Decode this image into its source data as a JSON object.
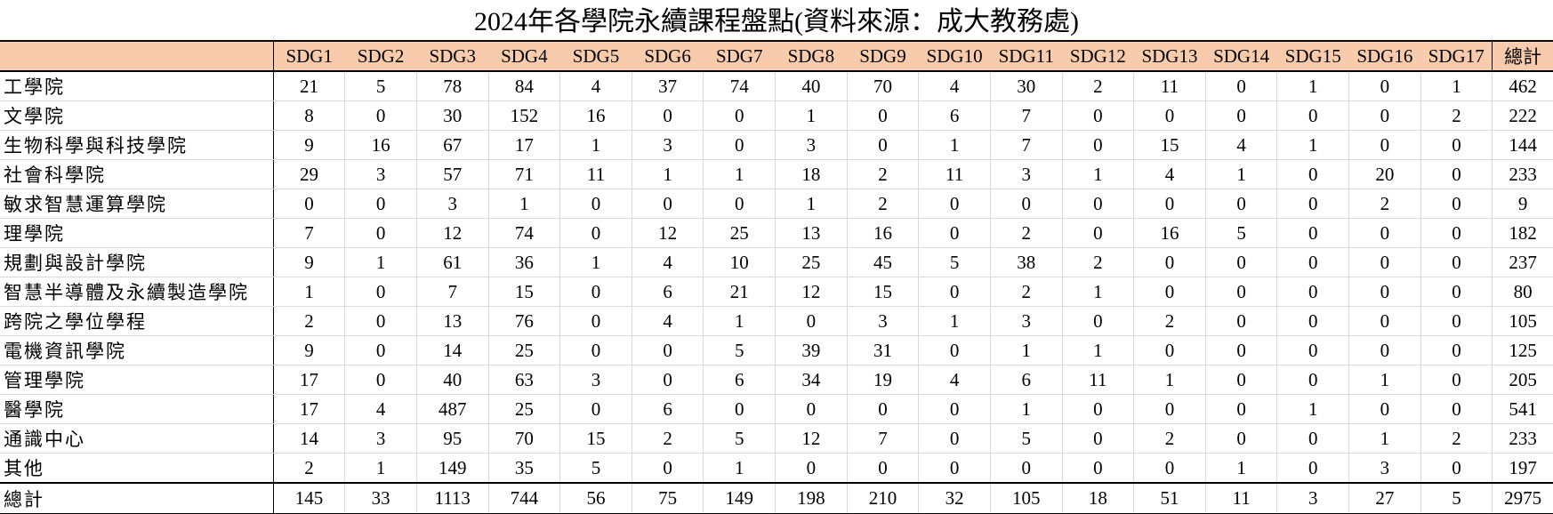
{
  "title": "2024年各學院永續課程盤點(資料來源：成大教務處)",
  "columns": [
    "SDG1",
    "SDG2",
    "SDG3",
    "SDG4",
    "SDG5",
    "SDG6",
    "SDG7",
    "SDG8",
    "SDG9",
    "SDG10",
    "SDG11",
    "SDG12",
    "SDG13",
    "SDG14",
    "SDG15",
    "SDG16",
    "SDG17",
    "總計"
  ],
  "header_color": "#f8cbad",
  "rows": [
    {
      "name": "工學院",
      "values": [
        21,
        5,
        78,
        84,
        4,
        37,
        74,
        40,
        70,
        4,
        30,
        2,
        11,
        0,
        1,
        0,
        1,
        462
      ]
    },
    {
      "name": "文學院",
      "values": [
        8,
        0,
        30,
        152,
        16,
        0,
        0,
        1,
        0,
        6,
        7,
        0,
        0,
        0,
        0,
        0,
        2,
        222
      ]
    },
    {
      "name": "生物科學與科技學院",
      "values": [
        9,
        16,
        67,
        17,
        1,
        3,
        0,
        3,
        0,
        1,
        7,
        0,
        15,
        4,
        1,
        0,
        0,
        144
      ]
    },
    {
      "name": "社會科學院",
      "values": [
        29,
        3,
        57,
        71,
        11,
        1,
        1,
        18,
        2,
        11,
        3,
        1,
        4,
        1,
        0,
        20,
        0,
        233
      ]
    },
    {
      "name": "敏求智慧運算學院",
      "values": [
        0,
        0,
        3,
        1,
        0,
        0,
        0,
        1,
        2,
        0,
        0,
        0,
        0,
        0,
        0,
        2,
        0,
        9
      ]
    },
    {
      "name": "理學院",
      "values": [
        7,
        0,
        12,
        74,
        0,
        12,
        25,
        13,
        16,
        0,
        2,
        0,
        16,
        5,
        0,
        0,
        0,
        182
      ]
    },
    {
      "name": "規劃與設計學院",
      "values": [
        9,
        1,
        61,
        36,
        1,
        4,
        10,
        25,
        45,
        5,
        38,
        2,
        0,
        0,
        0,
        0,
        0,
        237
      ]
    },
    {
      "name": "智慧半導體及永續製造學院",
      "values": [
        1,
        0,
        7,
        15,
        0,
        6,
        21,
        12,
        15,
        0,
        2,
        1,
        0,
        0,
        0,
        0,
        0,
        80
      ]
    },
    {
      "name": "跨院之學位學程",
      "values": [
        2,
        0,
        13,
        76,
        0,
        4,
        1,
        0,
        3,
        1,
        3,
        0,
        2,
        0,
        0,
        0,
        0,
        105
      ]
    },
    {
      "name": "電機資訊學院",
      "values": [
        9,
        0,
        14,
        25,
        0,
        0,
        5,
        39,
        31,
        0,
        1,
        1,
        0,
        0,
        0,
        0,
        0,
        125
      ]
    },
    {
      "name": "管理學院",
      "values": [
        17,
        0,
        40,
        63,
        3,
        0,
        6,
        34,
        19,
        4,
        6,
        11,
        1,
        0,
        0,
        1,
        0,
        205
      ]
    },
    {
      "name": "醫學院",
      "values": [
        17,
        4,
        487,
        25,
        0,
        6,
        0,
        0,
        0,
        0,
        1,
        0,
        0,
        0,
        1,
        0,
        0,
        541
      ]
    },
    {
      "name": "通識中心",
      "values": [
        14,
        3,
        95,
        70,
        15,
        2,
        5,
        12,
        7,
        0,
        5,
        0,
        2,
        0,
        0,
        1,
        2,
        233
      ]
    },
    {
      "name": "其他",
      "values": [
        2,
        1,
        149,
        35,
        5,
        0,
        1,
        0,
        0,
        0,
        0,
        0,
        0,
        1,
        0,
        3,
        0,
        197
      ]
    }
  ],
  "total": {
    "name": "總計",
    "values": [
      145,
      33,
      1113,
      744,
      56,
      75,
      149,
      198,
      210,
      32,
      105,
      18,
      51,
      11,
      3,
      27,
      5,
      2975
    ]
  }
}
